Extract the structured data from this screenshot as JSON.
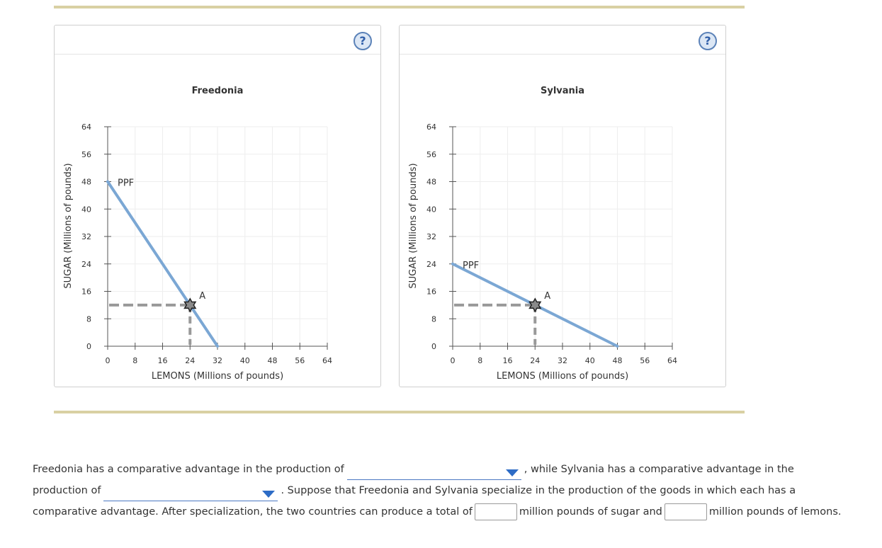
{
  "charts": [
    {
      "name": "freedonia",
      "help_label": "?"
    },
    {
      "name": "sylvania",
      "help_label": "?"
    }
  ],
  "chart_data": [
    {
      "type": "line",
      "title": "Freedonia",
      "xlabel": "LEMONS (Millions of pounds)",
      "ylabel": "SUGAR (Millions of pounds)",
      "xlim": [
        0,
        64
      ],
      "ylim": [
        0,
        64
      ],
      "xticks": [
        0,
        8,
        16,
        24,
        32,
        40,
        48,
        56,
        64
      ],
      "yticks": [
        0,
        8,
        16,
        24,
        32,
        40,
        48,
        56,
        64
      ],
      "grid": true,
      "series": [
        {
          "name": "PPF",
          "x": [
            0,
            32
          ],
          "y": [
            48,
            0
          ],
          "color": "#7ba7d4"
        }
      ],
      "points": [
        {
          "label": "A",
          "x": 24,
          "y": 12
        }
      ]
    },
    {
      "type": "line",
      "title": "Sylvania",
      "xlabel": "LEMONS (Millions of pounds)",
      "ylabel": "SUGAR (Millions of pounds)",
      "xlim": [
        0,
        64
      ],
      "ylim": [
        0,
        64
      ],
      "xticks": [
        0,
        8,
        16,
        24,
        32,
        40,
        48,
        56,
        64
      ],
      "yticks": [
        0,
        8,
        16,
        24,
        32,
        40,
        48,
        56,
        64
      ],
      "grid": true,
      "series": [
        {
          "name": "PPF",
          "x": [
            0,
            48
          ],
          "y": [
            24,
            0
          ],
          "color": "#7ba7d4"
        }
      ],
      "points": [
        {
          "label": "A",
          "x": 24,
          "y": 12
        }
      ]
    }
  ],
  "question": {
    "part1": "Freedonia has a comparative advantage in the production of",
    "part2": ", while Sylvania has a comparative advantage in the production of",
    "part3": ". Suppose that Freedonia and Sylvania specialize in the production of the goods in which each has a comparative advantage. After specialization, the two countries can produce a total of",
    "part4": "million pounds of sugar and",
    "part5": "million pounds of lemons.",
    "dropdown1_value": "",
    "dropdown2_value": "",
    "input1_value": "",
    "input2_value": ""
  }
}
